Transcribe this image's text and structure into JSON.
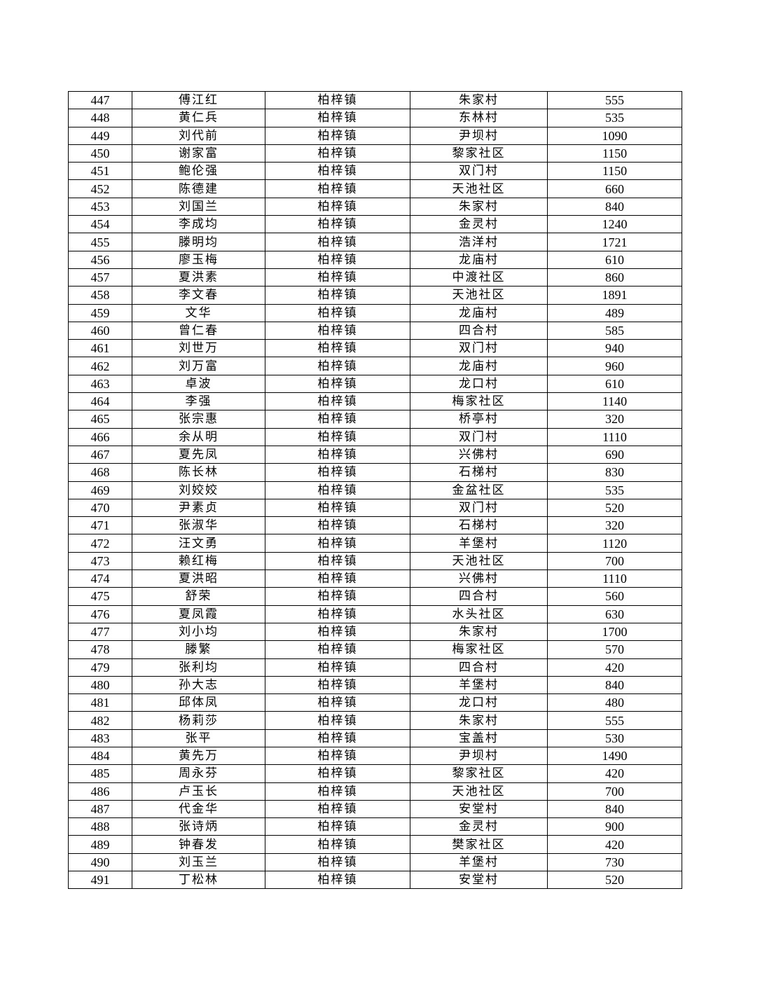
{
  "table": {
    "rows": [
      [
        "447",
        "傅江红",
        "柏梓镇",
        "朱家村",
        "555"
      ],
      [
        "448",
        "黄仁兵",
        "柏梓镇",
        "东林村",
        "535"
      ],
      [
        "449",
        "刘代前",
        "柏梓镇",
        "尹坝村",
        "1090"
      ],
      [
        "450",
        "谢家富",
        "柏梓镇",
        "黎家社区",
        "1150"
      ],
      [
        "451",
        "鲍伦强",
        "柏梓镇",
        "双门村",
        "1150"
      ],
      [
        "452",
        "陈德建",
        "柏梓镇",
        "天池社区",
        "660"
      ],
      [
        "453",
        "刘国兰",
        "柏梓镇",
        "朱家村",
        "840"
      ],
      [
        "454",
        "李成均",
        "柏梓镇",
        "金灵村",
        "1240"
      ],
      [
        "455",
        "滕明均",
        "柏梓镇",
        "浩洋村",
        "1721"
      ],
      [
        "456",
        "廖玉梅",
        "柏梓镇",
        "龙庙村",
        "610"
      ],
      [
        "457",
        "夏洪素",
        "柏梓镇",
        "中渡社区",
        "860"
      ],
      [
        "458",
        "李文春",
        "柏梓镇",
        "天池社区",
        "1891"
      ],
      [
        "459",
        "文华",
        "柏梓镇",
        "龙庙村",
        "489"
      ],
      [
        "460",
        "曾仁春",
        "柏梓镇",
        "四合村",
        "585"
      ],
      [
        "461",
        "刘世万",
        "柏梓镇",
        "双门村",
        "940"
      ],
      [
        "462",
        "刘万富",
        "柏梓镇",
        "龙庙村",
        "960"
      ],
      [
        "463",
        "卓波",
        "柏梓镇",
        "龙口村",
        "610"
      ],
      [
        "464",
        "李强",
        "柏梓镇",
        "梅家社区",
        "1140"
      ],
      [
        "465",
        "张宗惠",
        "柏梓镇",
        "桥亭村",
        "320"
      ],
      [
        "466",
        "余从明",
        "柏梓镇",
        "双门村",
        "1110"
      ],
      [
        "467",
        "夏先凤",
        "柏梓镇",
        "兴佛村",
        "690"
      ],
      [
        "468",
        "陈长林",
        "柏梓镇",
        "石梯村",
        "830"
      ],
      [
        "469",
        "刘姣姣",
        "柏梓镇",
        "金盆社区",
        "535"
      ],
      [
        "470",
        "尹素贞",
        "柏梓镇",
        "双门村",
        "520"
      ],
      [
        "471",
        "张淑华",
        "柏梓镇",
        "石梯村",
        "320"
      ],
      [
        "472",
        "汪文勇",
        "柏梓镇",
        "羊堡村",
        "1120"
      ],
      [
        "473",
        "赖红梅",
        "柏梓镇",
        "天池社区",
        "700"
      ],
      [
        "474",
        "夏洪昭",
        "柏梓镇",
        "兴佛村",
        "1110"
      ],
      [
        "475",
        "舒荣",
        "柏梓镇",
        "四合村",
        "560"
      ],
      [
        "476",
        "夏凤霞",
        "柏梓镇",
        "水头社区",
        "630"
      ],
      [
        "477",
        "刘小均",
        "柏梓镇",
        "朱家村",
        "1700"
      ],
      [
        "478",
        "滕繁",
        "柏梓镇",
        "梅家社区",
        "570"
      ],
      [
        "479",
        "张利均",
        "柏梓镇",
        "四合村",
        "420"
      ],
      [
        "480",
        "孙大志",
        "柏梓镇",
        "羊堡村",
        "840"
      ],
      [
        "481",
        "邱体凤",
        "柏梓镇",
        "龙口村",
        "480"
      ],
      [
        "482",
        "杨莉莎",
        "柏梓镇",
        "朱家村",
        "555"
      ],
      [
        "483",
        "张平",
        "柏梓镇",
        "宝盖村",
        "530"
      ],
      [
        "484",
        "黄先万",
        "柏梓镇",
        "尹坝村",
        "1490"
      ],
      [
        "485",
        "周永芬",
        "柏梓镇",
        "黎家社区",
        "420"
      ],
      [
        "486",
        "卢玉长",
        "柏梓镇",
        "天池社区",
        "700"
      ],
      [
        "487",
        "代金华",
        "柏梓镇",
        "安堂村",
        "840"
      ],
      [
        "488",
        "张诗炳",
        "柏梓镇",
        "金灵村",
        "900"
      ],
      [
        "489",
        "钟春发",
        "柏梓镇",
        "樊家社区",
        "420"
      ],
      [
        "490",
        "刘玉兰",
        "柏梓镇",
        "羊堡村",
        "730"
      ],
      [
        "491",
        "丁松林",
        "柏梓镇",
        "安堂村",
        "520"
      ]
    ]
  }
}
